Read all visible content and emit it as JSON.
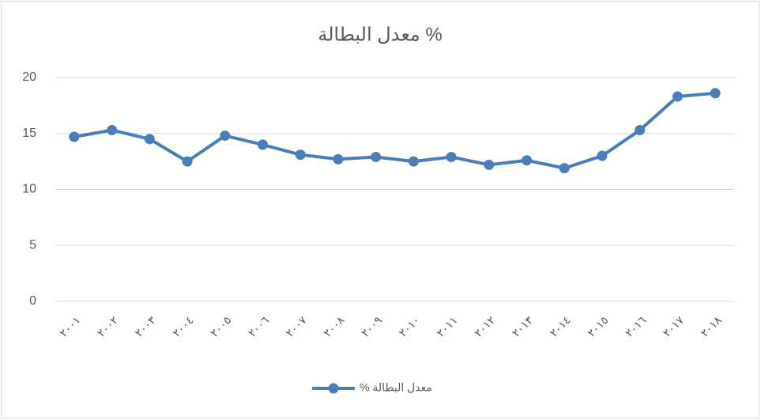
{
  "chart_data": {
    "type": "line",
    "title": "معدل البطالة %",
    "categories": [
      "٢٠٠١",
      "٢٠٠٢",
      "٢٠٠٣",
      "٢٠٠٤",
      "٢٠٠٥",
      "٢٠٠٦",
      "٢٠٠٧",
      "٢٠٠٨",
      "٢٠٠٩",
      "٢٠١٠",
      "٢٠١١",
      "٢٠١٢",
      "٢٠١٣",
      "٢٠١٤",
      "٢٠١٥",
      "٢٠١٦",
      "٢٠١٧",
      "٢٠١٨"
    ],
    "series": [
      {
        "name": "معدل البطالة %",
        "color": "#4a7ebb",
        "values": [
          14.7,
          15.3,
          14.5,
          12.5,
          14.8,
          14.0,
          13.1,
          12.7,
          12.9,
          12.5,
          12.9,
          12.2,
          12.6,
          11.9,
          13.0,
          15.3,
          18.3,
          18.6
        ]
      }
    ],
    "ylim": [
      0,
      20
    ],
    "yticks": [
      0,
      5,
      10,
      15,
      20
    ],
    "grid": true,
    "legend": "bottom"
  }
}
